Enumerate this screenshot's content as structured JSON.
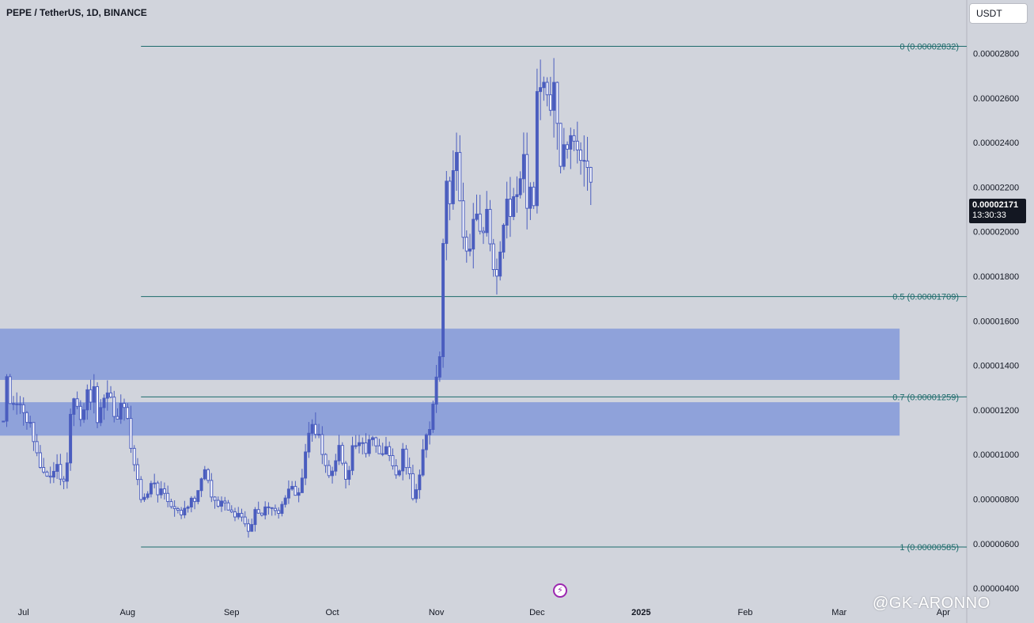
{
  "header": {
    "title": "PEPE / TetherUS, 1D, BINANCE"
  },
  "currency_button": "USDT",
  "last_price": {
    "price": "0.00002171",
    "countdown": "13:30:33"
  },
  "watermark": "@GK-ARONNO",
  "event_icon": "lightning-bolt-icon",
  "colors": {
    "background": "#d1d4dc",
    "candle": "#4a5dbf",
    "zone": "#8fa2da",
    "fib_line": "#1c6b6b",
    "label": "#1c6b6b"
  },
  "chart_data": {
    "type": "candlestick",
    "y_axis": {
      "ticks": [
        "0.00000400",
        "0.00000600",
        "0.00000800",
        "0.00001000",
        "0.00001200",
        "0.00001400",
        "0.00001600",
        "0.00001800",
        "0.00002000",
        "0.00002200",
        "0.00002400",
        "0.00002600",
        "0.00002800"
      ],
      "range": [
        3.4e-06,
        3.04e-05
      ]
    },
    "x_axis": {
      "labels": [
        "Jul",
        "Aug",
        "Sep",
        "Oct",
        "Nov",
        "Dec",
        "2025",
        "Feb",
        "Mar",
        "Apr"
      ],
      "label_dates": [
        "2024-07-01",
        "2024-08-01",
        "2024-09-01",
        "2024-10-01",
        "2024-11-01",
        "2024-12-01",
        "2025-01-01",
        "2025-02-01",
        "2025-03-01",
        "2025-04-01"
      ],
      "range": [
        "2024-06-24",
        "2025-04-08"
      ]
    },
    "fib_levels": [
      {
        "label": "0 (0.00002832)",
        "value": 2.832e-05
      },
      {
        "label": "0.5 (0.00001709)",
        "value": 1.709e-05
      },
      {
        "label": "0.7 (0.00001259)",
        "value": 1.259e-05
      },
      {
        "label": "1 (0.00000585)",
        "value": 5.85e-06
      }
    ],
    "zones": [
      {
        "low": 1.335e-05,
        "high": 1.565e-05
      },
      {
        "low": 1.085e-05,
        "high": 1.235e-05
      }
    ],
    "fib_start_date": "2024-08-05",
    "zone_end_date": "2025-03-19",
    "path_start_date": "2024-06-25",
    "path_end_date": "2024-12-17",
    "close_path": [
      1.15e-05,
      1.32e-05,
      1.2e-05,
      1.28e-05,
      1.22e-05,
      1.18e-05,
      1.12e-05,
      1.19e-05,
      1.08e-05,
      1e-05,
      9.2e-06,
      8.8e-06,
      9.2e-06,
      8.9e-06,
      9.4e-06,
      8.7e-06,
      9e-06,
      9.8e-06,
      1.18e-05,
      1.24e-05,
      1.15e-05,
      1.22e-05,
      1.28e-05,
      1.2e-05,
      1.26e-05,
      1.18e-05,
      1.25e-05,
      1.19e-05,
      1.27e-05,
      1.22e-05,
      1.15e-05,
      1.21e-05,
      1.17e-05,
      1.12e-05,
      1.04e-05,
      9.4e-06,
      8.4e-06,
      7.6e-06,
      8.3e-06,
      8.9e-06,
      8.5e-06,
      8.1e-06,
      8.7e-06,
      8.2e-06,
      7.8e-06,
      7.4e-06,
      7.7e-06,
      7.3e-06,
      7.8e-06,
      7.6e-06,
      7.9e-06,
      8.2e-06,
      8.8e-06,
      9.5e-06,
      9e-06,
      8.5e-06,
      8e-06,
      7.7e-06,
      7.9e-06,
      7.6e-06,
      7.8e-06,
      7.5e-06,
      7.3e-06,
      7e-06,
      7.2e-06,
      6.8e-06,
      7.1e-06,
      7.4e-06,
      7.3e-06,
      7.6e-06,
      7.8e-06,
      7.4e-06,
      7.3e-06,
      7.6e-06,
      8e-06,
      8.4e-06,
      8.2e-06,
      8.5e-06,
      8.3e-06,
      8.7e-06,
      9.5e-06,
      1.08e-05,
      1.16e-05,
      1.12e-05,
      1.04e-05,
      9.4e-06,
      9e-06,
      9.8e-06,
      9.3e-06,
      1.02e-05,
      9.6e-06,
      9.2e-06,
      9.7e-06,
      1.04e-05,
      9.8e-06,
      1.1e-05,
      1.04e-05,
      1.02e-05,
      1.07e-05,
      1.01e-05,
      1.05e-05,
      1.04e-05,
      1e-05,
      9.5e-06,
      9e-06,
      9.4e-06,
      9.9e-06,
      9.3e-06,
      8.8e-06,
      8.2e-06,
      8.6e-06,
      9.5e-06,
      1.05e-05,
      1.13e-05,
      1.22e-05,
      1.31e-05,
      1.42e-05,
      2.08e-05,
      2.33e-05,
      2.12e-05,
      2.35e-05,
      2.15e-05,
      2.05e-05,
      1.98e-05,
      1.9e-05,
      2.05e-05,
      2.12e-05,
      1.95e-05,
      2.07e-05,
      1.95e-05,
      1.85e-05,
      1.8e-05,
      1.95e-05,
      2e-05,
      2.1e-05,
      2.05e-05,
      2.28e-05,
      2.15e-05,
      2.3e-05,
      2.1e-05,
      2.25e-05,
      2.17e-05,
      2.7e-05,
      2.6e-05,
      2.83e-05,
      2.55e-05,
      2.7e-05,
      2.45e-05,
      2.36e-05,
      2.48e-05,
      2.4e-05,
      2.35e-05,
      2.45e-05,
      2.32e-05,
      2.36e-05,
      2.25e-05,
      2.19e-05
    ]
  }
}
